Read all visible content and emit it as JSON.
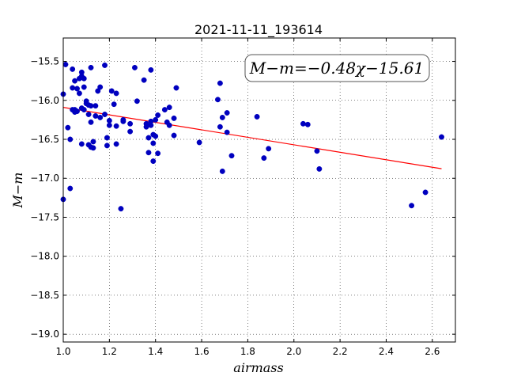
{
  "chart_data": {
    "type": "scatter",
    "title": "2021-11-11_193614",
    "xlabel": "airmass",
    "ylabel": "M−m",
    "xlim": [
      1.0,
      2.7
    ],
    "ylim": [
      -15.2,
      -19.1
    ],
    "y_inverted": true,
    "grid": true,
    "xticks": [
      1.0,
      1.2,
      1.4,
      1.6,
      1.8,
      2.0,
      2.2,
      2.4,
      2.6
    ],
    "xtick_labels": [
      "1.0",
      "1.2",
      "1.4",
      "1.6",
      "1.8",
      "2.0",
      "2.2",
      "2.4",
      "2.6"
    ],
    "yticks": [
      -15.5,
      -16.0,
      -16.5,
      -17.0,
      -17.5,
      -18.0,
      -18.5,
      -19.0
    ],
    "ytick_labels": [
      "−15.5",
      "−16.0",
      "−16.5",
      "−17.0",
      "−17.5",
      "−18.0",
      "−18.5",
      "−19.0"
    ],
    "annotation": "M−m=−0.48χ−15.61",
    "fit_line": {
      "slope": -0.48,
      "intercept": -15.61,
      "x_range": [
        1.0,
        2.64
      ],
      "color": "#ff0000"
    },
    "marker_color": "#0000bf",
    "points": [
      [
        1.0,
        -17.27
      ],
      [
        1.0,
        -15.92
      ],
      [
        1.01,
        -15.54
      ],
      [
        1.02,
        -16.35
      ],
      [
        1.03,
        -16.5
      ],
      [
        1.03,
        -17.13
      ],
      [
        1.04,
        -15.6
      ],
      [
        1.04,
        -15.84
      ],
      [
        1.04,
        -16.12
      ],
      [
        1.05,
        -15.75
      ],
      [
        1.05,
        -16.12
      ],
      [
        1.05,
        -16.15
      ],
      [
        1.06,
        -15.85
      ],
      [
        1.06,
        -16.14
      ],
      [
        1.07,
        -15.91
      ],
      [
        1.07,
        -15.72
      ],
      [
        1.08,
        -15.64
      ],
      [
        1.08,
        -15.69
      ],
      [
        1.08,
        -16.1
      ],
      [
        1.08,
        -16.56
      ],
      [
        1.09,
        -15.72
      ],
      [
        1.09,
        -15.83
      ],
      [
        1.09,
        -16.12
      ],
      [
        1.1,
        -16.01
      ],
      [
        1.1,
        -16.04
      ],
      [
        1.11,
        -16.06
      ],
      [
        1.11,
        -16.18
      ],
      [
        1.11,
        -16.57
      ],
      [
        1.12,
        -15.58
      ],
      [
        1.12,
        -16.07
      ],
      [
        1.12,
        -16.28
      ],
      [
        1.12,
        -16.6
      ],
      [
        1.13,
        -16.53
      ],
      [
        1.13,
        -16.61
      ],
      [
        1.14,
        -16.07
      ],
      [
        1.14,
        -16.2
      ],
      [
        1.15,
        -15.88
      ],
      [
        1.16,
        -15.83
      ],
      [
        1.16,
        -16.22
      ],
      [
        1.18,
        -15.55
      ],
      [
        1.18,
        -16.18
      ],
      [
        1.19,
        -16.48
      ],
      [
        1.19,
        -16.58
      ],
      [
        1.2,
        -16.26
      ],
      [
        1.2,
        -16.32
      ],
      [
        1.21,
        -15.88
      ],
      [
        1.22,
        -16.05
      ],
      [
        1.23,
        -15.91
      ],
      [
        1.23,
        -16.33
      ],
      [
        1.23,
        -16.56
      ],
      [
        1.25,
        -17.39
      ],
      [
        1.26,
        -16.25
      ],
      [
        1.26,
        -16.27
      ],
      [
        1.29,
        -16.3
      ],
      [
        1.29,
        -16.4
      ],
      [
        1.31,
        -15.58
      ],
      [
        1.32,
        -16.01
      ],
      [
        1.35,
        -15.74
      ],
      [
        1.36,
        -16.3
      ],
      [
        1.36,
        -16.34
      ],
      [
        1.37,
        -16.67
      ],
      [
        1.37,
        -16.48
      ],
      [
        1.38,
        -16.27
      ],
      [
        1.38,
        -16.32
      ],
      [
        1.38,
        -15.61
      ],
      [
        1.39,
        -16.44
      ],
      [
        1.39,
        -16.55
      ],
      [
        1.39,
        -16.78
      ],
      [
        1.4,
        -16.25
      ],
      [
        1.4,
        -16.46
      ],
      [
        1.41,
        -16.19
      ],
      [
        1.41,
        -16.68
      ],
      [
        1.44,
        -16.12
      ],
      [
        1.45,
        -16.28
      ],
      [
        1.46,
        -16.09
      ],
      [
        1.46,
        -16.32
      ],
      [
        1.48,
        -16.23
      ],
      [
        1.48,
        -16.45
      ],
      [
        1.49,
        -15.84
      ],
      [
        1.59,
        -16.54
      ],
      [
        1.67,
        -15.99
      ],
      [
        1.68,
        -15.78
      ],
      [
        1.68,
        -16.34
      ],
      [
        1.69,
        -16.22
      ],
      [
        1.69,
        -16.91
      ],
      [
        1.71,
        -16.16
      ],
      [
        1.71,
        -16.41
      ],
      [
        1.73,
        -16.71
      ],
      [
        1.84,
        -16.21
      ],
      [
        1.87,
        -16.74
      ],
      [
        1.89,
        -16.62
      ],
      [
        2.04,
        -16.3
      ],
      [
        2.06,
        -16.31
      ],
      [
        2.1,
        -16.65
      ],
      [
        2.11,
        -16.88
      ],
      [
        2.51,
        -17.35
      ],
      [
        2.57,
        -17.18
      ],
      [
        2.64,
        -16.47
      ]
    ]
  }
}
